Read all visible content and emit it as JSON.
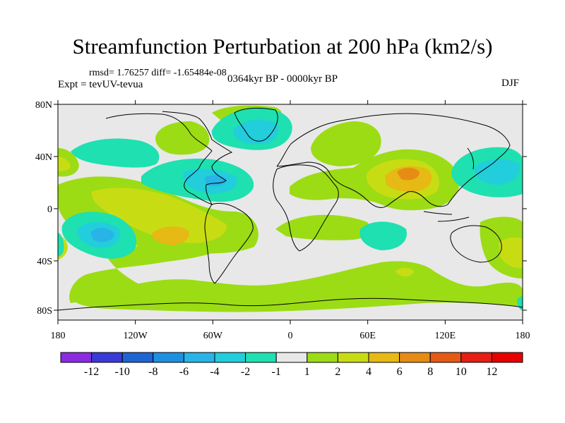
{
  "title": "Streamfunction Perturbation at 200 hPa (km2/s)",
  "stats": "rmsd= 1.76257 diff= -1.65484e-08",
  "expt": "Expt = tevUV-tevua",
  "period": "0364kyr BP - 0000kyr BP",
  "season": "DJF",
  "lat_labels": [
    "80N",
    "40N",
    "0",
    "40S",
    "80S"
  ],
  "lon_labels": [
    "180",
    "120W",
    "60W",
    "0",
    "60E",
    "120E",
    "180"
  ],
  "colorbar": {
    "labels": [
      "-12",
      "-10",
      "-8",
      "-6",
      "-4",
      "-2",
      "-1",
      "1",
      "2",
      "4",
      "6",
      "8",
      "10",
      "12"
    ],
    "colors": [
      "#8a2be2",
      "#3a3ad8",
      "#1e64d2",
      "#1e90e0",
      "#28b4e6",
      "#22cddc",
      "#1ee0b0",
      "#e8e8e8",
      "#9cdc14",
      "#c8dc14",
      "#e6b914",
      "#e68c14",
      "#e65a14",
      "#e61e14",
      "#e60000"
    ]
  },
  "field_colors": {
    "neutral": "#e8e8e8",
    "pos1": "#9cdc14",
    "pos2": "#c8dc14",
    "pos3": "#e6b914",
    "pos4": "#e68c14",
    "neg1": "#1ee0b0",
    "neg2": "#22cddc",
    "neg3": "#28b4e6",
    "neg4": "#1e90e0"
  }
}
